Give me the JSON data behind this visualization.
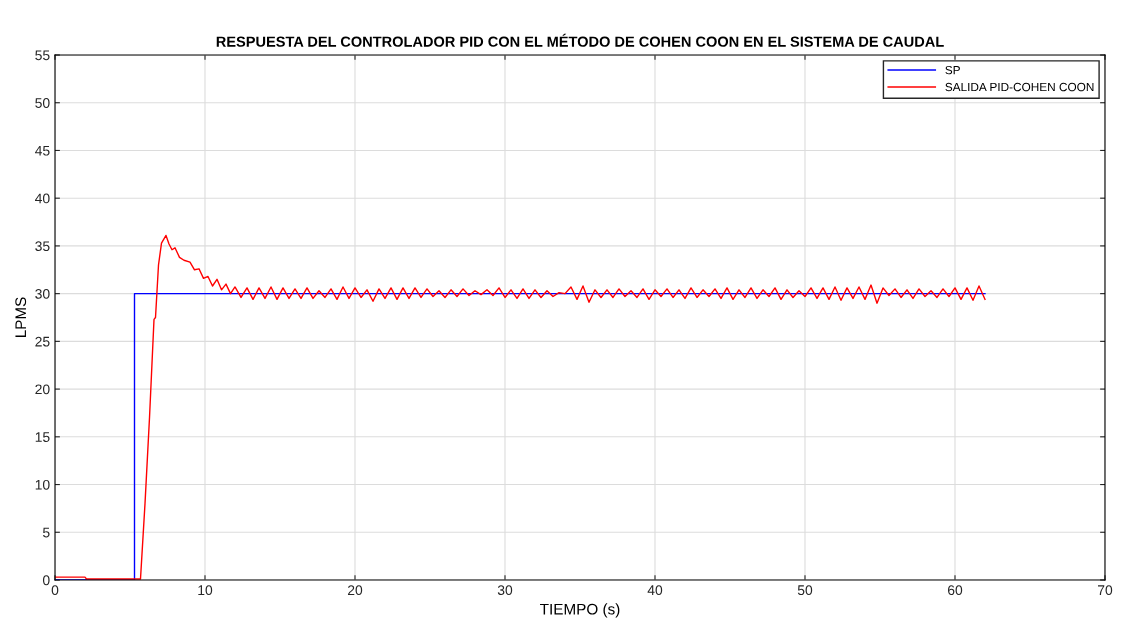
{
  "chart_data": {
    "type": "line",
    "title": "RESPUESTA DEL CONTROLADOR PID CON EL MÉTODO DE COHEN COON EN EL SISTEMA DE CAUDAL",
    "xlabel": "TIEMPO (s)",
    "ylabel": "LPMS",
    "xlim": [
      0,
      70
    ],
    "xticks": [
      0,
      10,
      20,
      30,
      40,
      50,
      60,
      70
    ],
    "ylim": [
      0,
      55
    ],
    "yticks": [
      0,
      5,
      10,
      15,
      20,
      25,
      30,
      35,
      40,
      45,
      50,
      55
    ],
    "grid": true,
    "legend": "top right",
    "marker": "none",
    "line_style": "solid",
    "series": [
      {
        "name": "SP",
        "color": "#0000ff",
        "x": [
          0,
          5.3,
          5.3,
          62
        ],
        "values": [
          0,
          0,
          30,
          30
        ]
      },
      {
        "name": "SALIDA PID-COHEN COON",
        "color": "#ff0000",
        "x": [
          0,
          2.0,
          2.1,
          5.7,
          6.0,
          6.3,
          6.6,
          6.7,
          6.9,
          7.1,
          7.4,
          7.6,
          7.8,
          8.0,
          8.3,
          8.6,
          9.0,
          9.3,
          9.6,
          9.9,
          10.2,
          10.5,
          10.8,
          11.1,
          11.4,
          11.7,
          12.0,
          12.4,
          12.8,
          13.2,
          13.6,
          14.0,
          14.4,
          14.8,
          15.2,
          15.6,
          16.0,
          16.4,
          16.8,
          17.2,
          17.6,
          18.0,
          18.4,
          18.8,
          19.2,
          19.6,
          20.0,
          20.4,
          20.8,
          21.2,
          21.6,
          22.0,
          22.4,
          22.8,
          23.2,
          23.6,
          24.0,
          24.4,
          24.8,
          25.2,
          25.6,
          26.0,
          26.4,
          26.8,
          27.2,
          27.6,
          28.0,
          28.4,
          28.8,
          29.2,
          29.6,
          30.0,
          30.4,
          30.8,
          31.2,
          31.6,
          32.0,
          32.4,
          32.8,
          33.2,
          33.6,
          34.0,
          34.4,
          34.8,
          35.2,
          35.6,
          36.0,
          36.4,
          36.8,
          37.2,
          37.6,
          38.0,
          38.4,
          38.8,
          39.2,
          39.6,
          40.0,
          40.4,
          40.8,
          41.2,
          41.6,
          42.0,
          42.4,
          42.8,
          43.2,
          43.6,
          44.0,
          44.4,
          44.8,
          45.2,
          45.6,
          46.0,
          46.4,
          46.8,
          47.2,
          47.6,
          48.0,
          48.4,
          48.8,
          49.2,
          49.6,
          50.0,
          50.4,
          50.8,
          51.2,
          51.6,
          52.0,
          52.4,
          52.8,
          53.2,
          53.6,
          54.0,
          54.4,
          54.8,
          55.2,
          55.6,
          56.0,
          56.4,
          56.8,
          57.2,
          57.6,
          58.0,
          58.4,
          58.8,
          59.2,
          59.6,
          60.0,
          60.4,
          60.8,
          61.2,
          61.6,
          62.0
        ],
        "values": [
          0.3,
          0.3,
          0.1,
          0.1,
          8,
          17,
          27.3,
          27.5,
          33,
          35.3,
          36.1,
          35.2,
          34.6,
          34.8,
          33.8,
          33.5,
          33.3,
          32.5,
          32.6,
          31.6,
          31.8,
          30.8,
          31.5,
          30.4,
          31.0,
          30.0,
          30.7,
          29.6,
          30.6,
          29.4,
          30.6,
          29.5,
          30.7,
          29.4,
          30.6,
          29.5,
          30.5,
          29.5,
          30.6,
          29.5,
          30.3,
          29.6,
          30.5,
          29.4,
          30.7,
          29.5,
          30.6,
          29.6,
          30.4,
          29.2,
          30.5,
          29.5,
          30.6,
          29.4,
          30.6,
          29.5,
          30.6,
          29.6,
          30.5,
          29.7,
          30.3,
          29.6,
          30.4,
          29.7,
          30.5,
          29.8,
          30.3,
          29.9,
          30.4,
          29.8,
          30.6,
          29.6,
          30.4,
          29.5,
          30.5,
          29.5,
          30.4,
          29.6,
          30.3,
          29.7,
          30.1,
          30.0,
          30.7,
          29.4,
          30.8,
          29.1,
          30.4,
          29.6,
          30.4,
          29.6,
          30.5,
          29.7,
          30.3,
          29.6,
          30.5,
          29.4,
          30.4,
          29.7,
          30.5,
          29.6,
          30.4,
          29.5,
          30.6,
          29.6,
          30.4,
          29.7,
          30.5,
          29.5,
          30.6,
          29.4,
          30.4,
          29.6,
          30.6,
          29.5,
          30.4,
          29.7,
          30.6,
          29.4,
          30.4,
          29.6,
          30.3,
          29.7,
          30.6,
          29.5,
          30.6,
          29.4,
          30.7,
          29.3,
          30.6,
          29.5,
          30.7,
          29.4,
          30.9,
          29.0,
          30.6,
          29.8,
          30.5,
          29.6,
          30.4,
          29.5,
          30.5,
          29.7,
          30.3,
          29.6,
          30.5,
          29.7,
          30.6,
          29.4,
          30.6,
          29.3,
          30.8,
          29.4
        ]
      }
    ]
  }
}
